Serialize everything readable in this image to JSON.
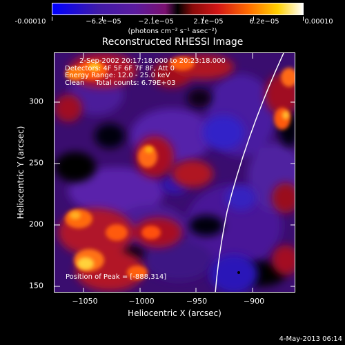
{
  "colorbar": {
    "ticks": [
      "-0.00010",
      "−6.2e−05",
      "−2.1e−05",
      "2.1e−05",
      "6.2e−05",
      "0.00010"
    ],
    "units": "(photons cm⁻² s⁻¹ asec⁻²)"
  },
  "title": "Reconstructed RHESSI Image",
  "info": {
    "time": "2-Sep-2002 20:17:18.000 to 20:23:18.000",
    "detectors": "Detectors: 4F 5F 6F 7F 8F, Att 0",
    "energy": "Energy Range: 12.0 - 25.0 keV",
    "clean": "Clean     Total counts: 6.79E+03"
  },
  "peak_text": "Position of Peak = [-888,314]",
  "x_axis": {
    "label": "Heliocentric X (arcsec)",
    "ticks": [
      "−1050",
      "−1000",
      "−950",
      "−900"
    ]
  },
  "y_axis": {
    "label": "Heliocentric Y (arcsec)",
    "ticks": [
      "300",
      "250",
      "200",
      "150"
    ]
  },
  "footer_date": "4-May-2013 06:14",
  "colors": {
    "background": "#000000",
    "low": "#2a0a8a",
    "mid": "#b0102a",
    "high": "#ffd23a"
  }
}
